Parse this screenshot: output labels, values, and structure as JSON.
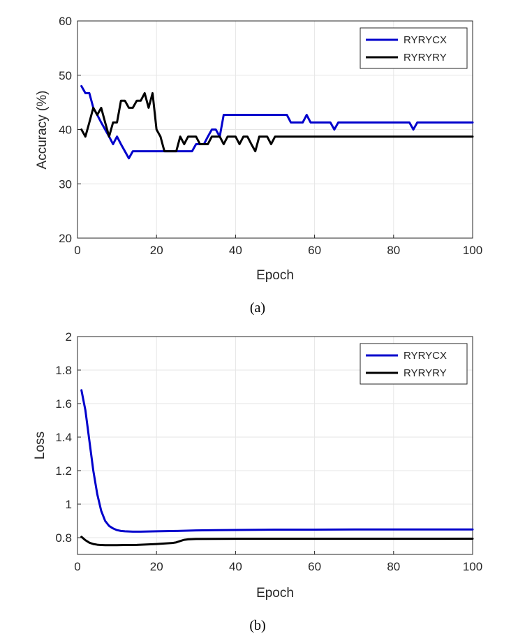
{
  "colors": {
    "series1": "#0000cc",
    "series2": "#000000"
  },
  "chart_data": [
    {
      "type": "line",
      "caption": "(a)",
      "xlabel": "Epoch",
      "ylabel": "Accuracy (%)",
      "xlim": [
        0,
        100
      ],
      "ylim": [
        20,
        60
      ],
      "xticks": [
        "0",
        "20",
        "40",
        "60",
        "80",
        "100"
      ],
      "yticks": [
        "20",
        "30",
        "40",
        "50",
        "60"
      ],
      "grid": true,
      "legend_position": "top-right",
      "series": [
        {
          "name": "RYRYCX",
          "x": [
            1,
            2,
            3,
            4,
            5,
            6,
            7,
            8,
            9,
            10,
            11,
            12,
            13,
            14,
            15,
            16,
            17,
            18,
            19,
            20,
            21,
            22,
            23,
            24,
            25,
            26,
            27,
            28,
            29,
            30,
            31,
            32,
            33,
            34,
            35,
            36,
            37,
            38,
            39,
            40,
            41,
            42,
            43,
            44,
            45,
            46,
            47,
            48,
            49,
            50,
            51,
            52,
            53,
            54,
            55,
            56,
            57,
            58,
            59,
            60,
            61,
            62,
            63,
            64,
            65,
            66,
            67,
            68,
            69,
            70,
            71,
            72,
            73,
            74,
            75,
            76,
            77,
            78,
            79,
            80,
            81,
            82,
            83,
            84,
            85,
            86,
            87,
            88,
            89,
            90,
            91,
            92,
            93,
            94,
            95,
            96,
            97,
            98,
            99,
            100
          ],
          "y": [
            48,
            46.7,
            46.7,
            44,
            42.7,
            41.3,
            40,
            38.7,
            37.3,
            38.7,
            37.3,
            36,
            34.7,
            36,
            36,
            36,
            36,
            36,
            36,
            36,
            36,
            36,
            36,
            36,
            36,
            36,
            36,
            36,
            36,
            37.3,
            37.3,
            37.3,
            38.7,
            40,
            40,
            38.7,
            42.7,
            42.7,
            42.7,
            42.7,
            42.7,
            42.7,
            42.7,
            42.7,
            42.7,
            42.7,
            42.7,
            42.7,
            42.7,
            42.7,
            42.7,
            42.7,
            42.7,
            41.3,
            41.3,
            41.3,
            41.3,
            42.7,
            41.3,
            41.3,
            41.3,
            41.3,
            41.3,
            41.3,
            40,
            41.3,
            41.3,
            41.3,
            41.3,
            41.3,
            41.3,
            41.3,
            41.3,
            41.3,
            41.3,
            41.3,
            41.3,
            41.3,
            41.3,
            41.3,
            41.3,
            41.3,
            41.3,
            41.3,
            40,
            41.3,
            41.3,
            41.3,
            41.3,
            41.3,
            41.3,
            41.3,
            41.3,
            41.3,
            41.3,
            41.3,
            41.3,
            41.3,
            41.3,
            41.3
          ]
        },
        {
          "name": "RYRYRY",
          "x": [
            1,
            2,
            3,
            4,
            5,
            6,
            7,
            8,
            9,
            10,
            11,
            12,
            13,
            14,
            15,
            16,
            17,
            18,
            19,
            20,
            21,
            22,
            23,
            24,
            25,
            26,
            27,
            28,
            29,
            30,
            31,
            32,
            33,
            34,
            35,
            36,
            37,
            38,
            39,
            40,
            41,
            42,
            43,
            44,
            45,
            46,
            47,
            48,
            49,
            50,
            51,
            52,
            53,
            54,
            55,
            56,
            57,
            58,
            59,
            60,
            61,
            62,
            63,
            64,
            65,
            66,
            67,
            68,
            69,
            70,
            71,
            72,
            73,
            74,
            75,
            76,
            77,
            78,
            79,
            80,
            81,
            82,
            83,
            84,
            85,
            86,
            87,
            88,
            89,
            90,
            91,
            92,
            93,
            94,
            95,
            96,
            97,
            98,
            99,
            100
          ],
          "y": [
            40,
            38.7,
            41.3,
            44,
            42.7,
            44,
            41.3,
            38.7,
            41.3,
            41.3,
            45.3,
            45.3,
            44,
            44,
            45.3,
            45.3,
            46.7,
            44,
            46.7,
            40,
            38.7,
            36,
            36,
            36,
            36,
            38.7,
            37.3,
            38.7,
            38.7,
            38.7,
            37.3,
            37.3,
            37.3,
            38.7,
            38.7,
            38.7,
            37.3,
            38.7,
            38.7,
            38.7,
            37.3,
            38.7,
            38.7,
            37.3,
            36,
            38.7,
            38.7,
            38.7,
            37.3,
            38.7,
            38.7,
            38.7,
            38.7,
            38.7,
            38.7,
            38.7,
            38.7,
            38.7,
            38.7,
            38.7,
            38.7,
            38.7,
            38.7,
            38.7,
            38.7,
            38.7,
            38.7,
            38.7,
            38.7,
            38.7,
            38.7,
            38.7,
            38.7,
            38.7,
            38.7,
            38.7,
            38.7,
            38.7,
            38.7,
            38.7,
            38.7,
            38.7,
            38.7,
            38.7,
            38.7,
            38.7,
            38.7,
            38.7,
            38.7,
            38.7,
            38.7,
            38.7,
            38.7,
            38.7,
            38.7,
            38.7,
            38.7,
            38.7,
            38.7,
            38.7
          ]
        }
      ]
    },
    {
      "type": "line",
      "caption": "(b)",
      "xlabel": "Epoch",
      "ylabel": "Loss",
      "xlim": [
        0,
        100
      ],
      "ylim": [
        0.7,
        2
      ],
      "xticks": [
        "0",
        "20",
        "40",
        "60",
        "80",
        "100"
      ],
      "yticks": [
        "0.8",
        "1",
        "1.2",
        "1.4",
        "1.6",
        "1.8",
        "2"
      ],
      "grid": true,
      "legend_position": "top-right",
      "series": [
        {
          "name": "RYRYCX",
          "x": [
            1,
            2,
            3,
            4,
            5,
            6,
            7,
            8,
            9,
            10,
            11,
            12,
            14,
            16,
            18,
            20,
            25,
            30,
            35,
            40,
            50,
            60,
            70,
            80,
            90,
            100
          ],
          "y": [
            1.68,
            1.56,
            1.38,
            1.2,
            1.06,
            0.96,
            0.9,
            0.87,
            0.855,
            0.845,
            0.84,
            0.838,
            0.836,
            0.836,
            0.837,
            0.838,
            0.84,
            0.843,
            0.845,
            0.846,
            0.848,
            0.848,
            0.849,
            0.849,
            0.849,
            0.849
          ]
        },
        {
          "name": "RYRYRY",
          "x": [
            1,
            2,
            3,
            4,
            5,
            6,
            7,
            8,
            10,
            12,
            15,
            18,
            20,
            22,
            24,
            25,
            26,
            27,
            28,
            30,
            40,
            50,
            60,
            70,
            80,
            90,
            100
          ],
          "y": [
            0.805,
            0.785,
            0.77,
            0.762,
            0.758,
            0.756,
            0.755,
            0.755,
            0.755,
            0.756,
            0.757,
            0.76,
            0.762,
            0.765,
            0.768,
            0.772,
            0.78,
            0.787,
            0.79,
            0.792,
            0.793,
            0.793,
            0.793,
            0.793,
            0.793,
            0.793,
            0.794
          ]
        }
      ]
    }
  ]
}
